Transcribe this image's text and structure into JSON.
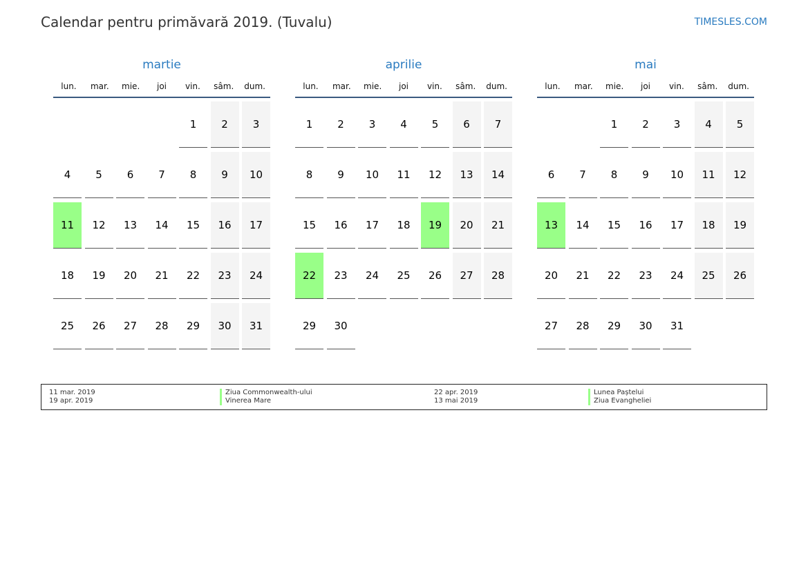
{
  "header": {
    "title": "Calendar pentru primăvară 2019. (Tuvalu)",
    "brand": "TIMESLES.COM"
  },
  "weekdays": [
    "lun.",
    "mar.",
    "mie.",
    "joi",
    "vin.",
    "sâm.",
    "dum."
  ],
  "colors": {
    "accent": "#2a7bc0",
    "holiday": "#99ff88",
    "weekend": "#f4f4f4"
  },
  "months": [
    {
      "name": "martie",
      "offset": 4,
      "days": [
        1,
        2,
        3,
        4,
        5,
        6,
        7,
        8,
        9,
        10,
        11,
        12,
        13,
        14,
        15,
        16,
        17,
        18,
        19,
        20,
        21,
        22,
        23,
        24,
        25,
        26,
        27,
        28,
        29,
        30,
        31
      ],
      "holidays": [
        11
      ]
    },
    {
      "name": "aprilie",
      "offset": 0,
      "days": [
        1,
        2,
        3,
        4,
        5,
        6,
        7,
        8,
        9,
        10,
        11,
        12,
        13,
        14,
        15,
        16,
        17,
        18,
        19,
        20,
        21,
        22,
        23,
        24,
        25,
        26,
        27,
        28,
        29,
        30
      ],
      "holidays": [
        19,
        22
      ]
    },
    {
      "name": "mai",
      "offset": 2,
      "days": [
        1,
        2,
        3,
        4,
        5,
        6,
        7,
        8,
        9,
        10,
        11,
        12,
        13,
        14,
        15,
        16,
        17,
        18,
        19,
        20,
        21,
        22,
        23,
        24,
        25,
        26,
        27,
        28,
        29,
        30,
        31
      ],
      "holidays": [
        13
      ]
    }
  ],
  "legend": [
    {
      "date": "11 mar. 2019",
      "name": "Ziua Commonwealth-ului"
    },
    {
      "date": "19 apr. 2019",
      "name": "Vinerea Mare"
    },
    {
      "date": "22 apr. 2019",
      "name": "Lunea Paștelui"
    },
    {
      "date": "13 mai 2019",
      "name": "Ziua Evangheliei"
    }
  ]
}
